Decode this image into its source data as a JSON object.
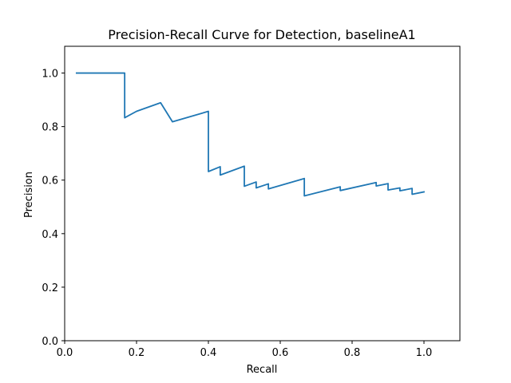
{
  "chart_data": {
    "type": "line",
    "title": "Precision-Recall Curve for Detection, baselineA1",
    "xlabel": "Recall",
    "ylabel": "Precision",
    "xlim": [
      0.0,
      1.1
    ],
    "ylim": [
      0.0,
      1.1
    ],
    "xticks": [
      0.0,
      0.2,
      0.4,
      0.6,
      0.8,
      1.0
    ],
    "yticks": [
      0.0,
      0.2,
      0.4,
      0.6,
      0.8,
      1.0
    ],
    "xtick_labels": [
      "0.0",
      "0.2",
      "0.4",
      "0.6",
      "0.8",
      "1.0"
    ],
    "ytick_labels": [
      "0.0",
      "0.2",
      "0.4",
      "0.6",
      "0.8",
      "1.0"
    ],
    "grid": false,
    "series": [
      {
        "color": "#1f77b4",
        "points": [
          [
            0.033,
            1.0
          ],
          [
            0.167,
            1.0
          ],
          [
            0.167,
            0.833
          ],
          [
            0.2,
            0.857
          ],
          [
            0.267,
            0.889
          ],
          [
            0.3,
            0.818
          ],
          [
            0.4,
            0.857
          ],
          [
            0.4,
            0.632
          ],
          [
            0.433,
            0.65
          ],
          [
            0.433,
            0.619
          ],
          [
            0.5,
            0.652
          ],
          [
            0.5,
            0.577
          ],
          [
            0.533,
            0.593
          ],
          [
            0.533,
            0.571
          ],
          [
            0.567,
            0.586
          ],
          [
            0.567,
            0.567
          ],
          [
            0.667,
            0.606
          ],
          [
            0.667,
            0.541
          ],
          [
            0.767,
            0.575
          ],
          [
            0.767,
            0.561
          ],
          [
            0.867,
            0.591
          ],
          [
            0.867,
            0.578
          ],
          [
            0.9,
            0.587
          ],
          [
            0.9,
            0.563
          ],
          [
            0.933,
            0.571
          ],
          [
            0.933,
            0.56
          ],
          [
            0.967,
            0.569
          ],
          [
            0.967,
            0.547
          ],
          [
            1.0,
            0.556
          ]
        ]
      }
    ]
  }
}
